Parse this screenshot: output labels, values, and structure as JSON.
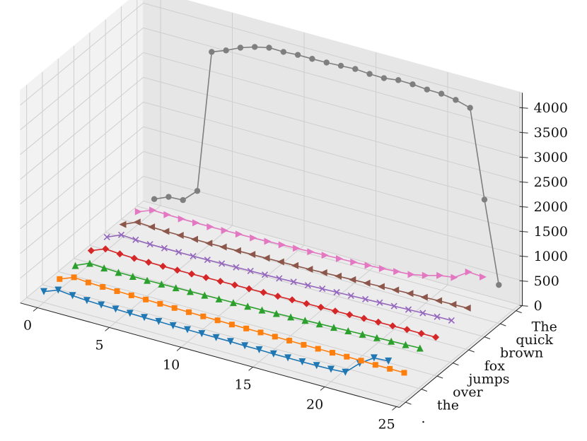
{
  "chart_data": {
    "type": "line3d",
    "x": [
      0,
      1,
      2,
      3,
      4,
      5,
      6,
      7,
      8,
      9,
      10,
      11,
      12,
      13,
      14,
      15,
      16,
      17,
      18,
      19,
      20,
      21,
      22,
      23,
      24
    ],
    "categories": [
      ".",
      "the",
      "over",
      "jumps",
      "fox",
      "brown",
      "quick",
      "The"
    ],
    "xlim": [
      -1.2,
      25.2
    ],
    "xticks": [
      0,
      5,
      10,
      15,
      20,
      25
    ],
    "ylim": [
      -0.4,
      7.4
    ],
    "zlim": [
      0,
      4300
    ],
    "zticks": [
      0,
      500,
      1000,
      1500,
      2000,
      2500,
      3000,
      3500,
      4000
    ],
    "grid": true,
    "series": [
      {
        "color": "#1f77b4",
        "marker": "triangle-down",
        "values": [
          220,
          330,
          300,
          280,
          270,
          265,
          260,
          255,
          255,
          250,
          250,
          250,
          250,
          250,
          245,
          245,
          240,
          240,
          240,
          245,
          250,
          270,
          530,
          720,
          735
        ]
      },
      {
        "color": "#ff7f0e",
        "marker": "square",
        "values": [
          210,
          325,
          300,
          290,
          285,
          280,
          275,
          270,
          265,
          260,
          255,
          255,
          250,
          250,
          250,
          245,
          245,
          240,
          240,
          240,
          240,
          240,
          235,
          235,
          235
        ]
      },
      {
        "color": "#2ca02c",
        "marker": "triangle-up",
        "values": [
          220,
          345,
          330,
          320,
          320,
          320,
          325,
          330,
          335,
          340,
          345,
          350,
          355,
          360,
          370,
          380,
          390,
          400,
          410,
          420,
          430,
          440,
          450,
          460,
          470
        ]
      },
      {
        "color": "#d62728",
        "marker": "diamond",
        "values": [
          255,
          370,
          350,
          340,
          340,
          340,
          340,
          345,
          350,
          355,
          360,
          365,
          370,
          375,
          380,
          385,
          390,
          395,
          400,
          405,
          410,
          415,
          420,
          420,
          425
        ]
      },
      {
        "color": "#9467bd",
        "marker": "x",
        "values": [
          265,
          390,
          370,
          360,
          360,
          360,
          360,
          365,
          370,
          375,
          380,
          385,
          390,
          400,
          410,
          420,
          430,
          440,
          450,
          460,
          470,
          480,
          490,
          495,
          500
        ]
      },
      {
        "color": "#8c564b",
        "marker": "triangle-left",
        "values": [
          255,
          385,
          365,
          355,
          355,
          355,
          355,
          360,
          365,
          370,
          375,
          380,
          385,
          390,
          400,
          410,
          420,
          430,
          440,
          450,
          460,
          465,
          475,
          480,
          485
        ]
      },
      {
        "color": "#e377c2",
        "marker": "triangle-right",
        "values": [
          250,
          360,
          350,
          345,
          345,
          345,
          350,
          355,
          360,
          370,
          380,
          390,
          400,
          410,
          420,
          430,
          445,
          460,
          480,
          500,
          560,
          640,
          680,
          870,
          850
        ]
      },
      {
        "color": "#7f7f7f",
        "marker": "circle",
        "values": [
          240,
          365,
          380,
          645,
          3535,
          3645,
          3780,
          3875,
          3940,
          3935,
          3955,
          3955,
          3960,
          3975,
          3990,
          3970,
          3965,
          4005,
          4000,
          3975,
          3970,
          3925,
          3845,
          2070,
          425
        ]
      }
    ]
  }
}
